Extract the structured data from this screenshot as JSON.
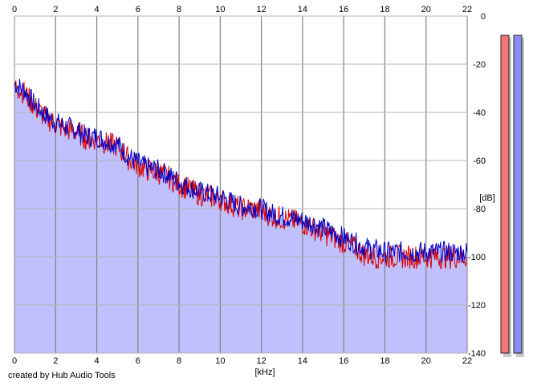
{
  "chart_data": {
    "type": "area",
    "title": "",
    "xlabel": "[kHz]",
    "ylabel": "[dB]",
    "xlim": [
      0,
      22
    ],
    "ylim": [
      -140,
      0
    ],
    "x_ticks": [
      "0",
      "2",
      "4",
      "6",
      "8",
      "10",
      "12",
      "14",
      "16",
      "18",
      "20",
      "22"
    ],
    "y_ticks": [
      "0",
      "-20",
      "-40",
      "-60",
      "-80",
      "-100",
      "-120",
      "-140"
    ],
    "grid": true,
    "series": [
      {
        "color": "#0000c8",
        "fill": "#c0c0ff",
        "x": [
          0,
          0.5,
          1,
          1.5,
          2,
          2.5,
          3,
          3.5,
          4,
          4.5,
          5,
          5.5,
          6,
          6.5,
          7,
          7.5,
          8,
          8.5,
          9,
          9.5,
          10,
          10.5,
          11,
          11.5,
          12,
          12.5,
          13,
          13.5,
          14,
          14.5,
          15,
          15.5,
          16,
          16.5,
          17,
          17.5,
          18,
          18.5,
          19,
          19.5,
          20,
          20.5,
          21,
          21.5,
          22
        ],
        "y": [
          -28,
          -31,
          -37,
          -41,
          -44,
          -46,
          -47,
          -50,
          -50,
          -52,
          -53,
          -58,
          -61,
          -63,
          -64,
          -66,
          -69,
          -71,
          -73,
          -74,
          -75,
          -77,
          -79,
          -79,
          -80,
          -82,
          -83,
          -84,
          -85,
          -86,
          -88,
          -90,
          -92,
          -94,
          -96,
          -97,
          -98,
          -98,
          -98,
          -98,
          -98,
          -98,
          -98,
          -98,
          -98
        ]
      },
      {
        "color": "#dc0000",
        "x": [
          0,
          0.5,
          1,
          1.5,
          2,
          2.5,
          3,
          3.5,
          4,
          4.5,
          5,
          5.5,
          6,
          6.5,
          7,
          7.5,
          8,
          8.5,
          9,
          9.5,
          10,
          10.5,
          11,
          11.5,
          12,
          12.5,
          13,
          13.5,
          14,
          14.5,
          15,
          15.5,
          16,
          16.5,
          17,
          17.5,
          18,
          18.5,
          19,
          19.5,
          20,
          20.5,
          21,
          21.5,
          22
        ],
        "y": [
          -29,
          -32,
          -38,
          -42,
          -45,
          -47,
          -48,
          -51,
          -51,
          -53,
          -54,
          -59,
          -62,
          -64,
          -65,
          -67,
          -70,
          -72,
          -74,
          -75,
          -76,
          -78,
          -80,
          -80,
          -81,
          -83,
          -84,
          -85,
          -86,
          -88,
          -90,
          -92,
          -94,
          -96,
          -99,
          -100,
          -100,
          -100,
          -100,
          -100,
          -100,
          -100,
          -100,
          -100,
          -100
        ]
      }
    ]
  },
  "meters": [
    {
      "color": "#f07878"
    },
    {
      "color": "#8c8cf0"
    }
  ],
  "credit": "created by Hub Audio Tools"
}
